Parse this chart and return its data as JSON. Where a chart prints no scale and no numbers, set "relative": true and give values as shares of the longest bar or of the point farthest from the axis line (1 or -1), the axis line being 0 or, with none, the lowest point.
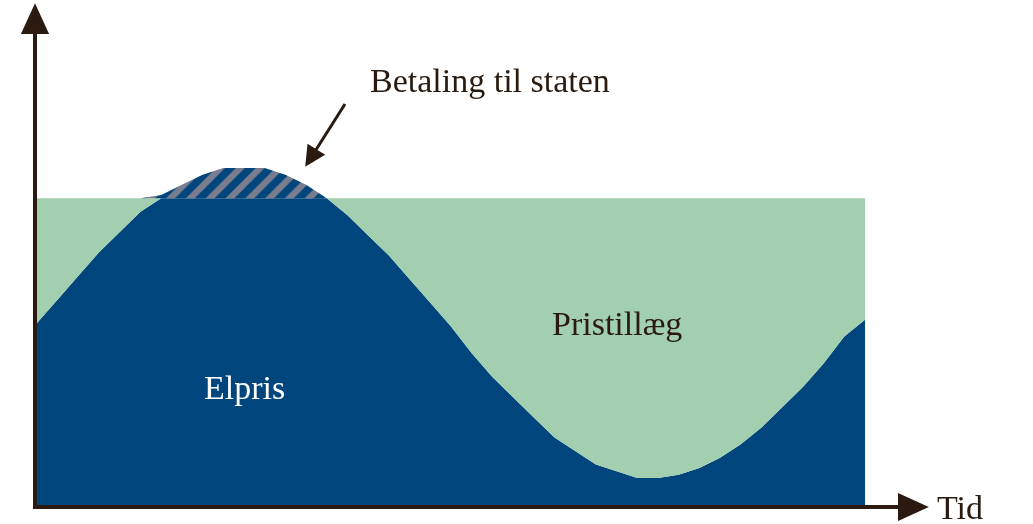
{
  "chart_data": {
    "type": "area",
    "stacked": true,
    "relative": true,
    "legend": false,
    "tick_labels": false,
    "xlabel": "Tid",
    "categories": [
      null,
      null,
      null,
      null,
      null,
      null,
      null,
      null,
      null,
      null,
      null,
      null,
      null,
      null,
      null,
      null,
      null,
      null,
      null,
      null,
      null,
      null,
      null,
      null,
      null,
      null,
      null,
      null,
      null,
      null,
      null,
      null,
      null,
      null,
      null,
      null,
      null,
      null,
      null,
      null,
      null
    ],
    "series": [
      {
        "name": "Elpris",
        "color": "#00457c",
        "values": [
          0.54,
          0.61,
          0.68,
          0.75,
          0.81,
          0.87,
          0.91,
          0.91,
          0.91,
          0.91,
          0.91,
          0.91,
          0.91,
          0.91,
          0.91,
          0.86,
          0.8,
          0.74,
          0.67,
          0.6,
          0.53,
          0.45,
          0.38,
          0.32,
          0.26,
          0.2,
          0.16,
          0.12,
          0.1,
          0.08,
          0.08,
          0.09,
          0.11,
          0.14,
          0.18,
          0.23,
          0.29,
          0.35,
          0.42,
          0.5,
          0.55
        ]
      },
      {
        "name": "Pristillæg",
        "color": "#a2cfb0",
        "values": [
          0.37,
          0.3,
          0.23,
          0.16,
          0.1,
          0.04,
          0,
          0,
          0,
          0,
          0,
          0,
          0,
          0,
          0,
          0.05,
          0.11,
          0.17,
          0.24,
          0.31,
          0.38,
          0.46,
          0.53,
          0.59,
          0.65,
          0.71,
          0.75,
          0.79,
          0.81,
          0.83,
          0.83,
          0.82,
          0.8,
          0.77,
          0.73,
          0.68,
          0.62,
          0.56,
          0.49,
          0.41,
          0.36
        ]
      },
      {
        "name": "Betaling til staten",
        "color": "#f4b5a0",
        "values": [
          0,
          0,
          0,
          0,
          0,
          0,
          0.01,
          0.04,
          0.07,
          0.09,
          0.09,
          0.09,
          0.07,
          0.04,
          0,
          0,
          0,
          0,
          0,
          0,
          0,
          0,
          0,
          0,
          0,
          0,
          0,
          0,
          0,
          0,
          0,
          0,
          0,
          0,
          0,
          0,
          0,
          0,
          0,
          0,
          0
        ]
      }
    ]
  }
}
